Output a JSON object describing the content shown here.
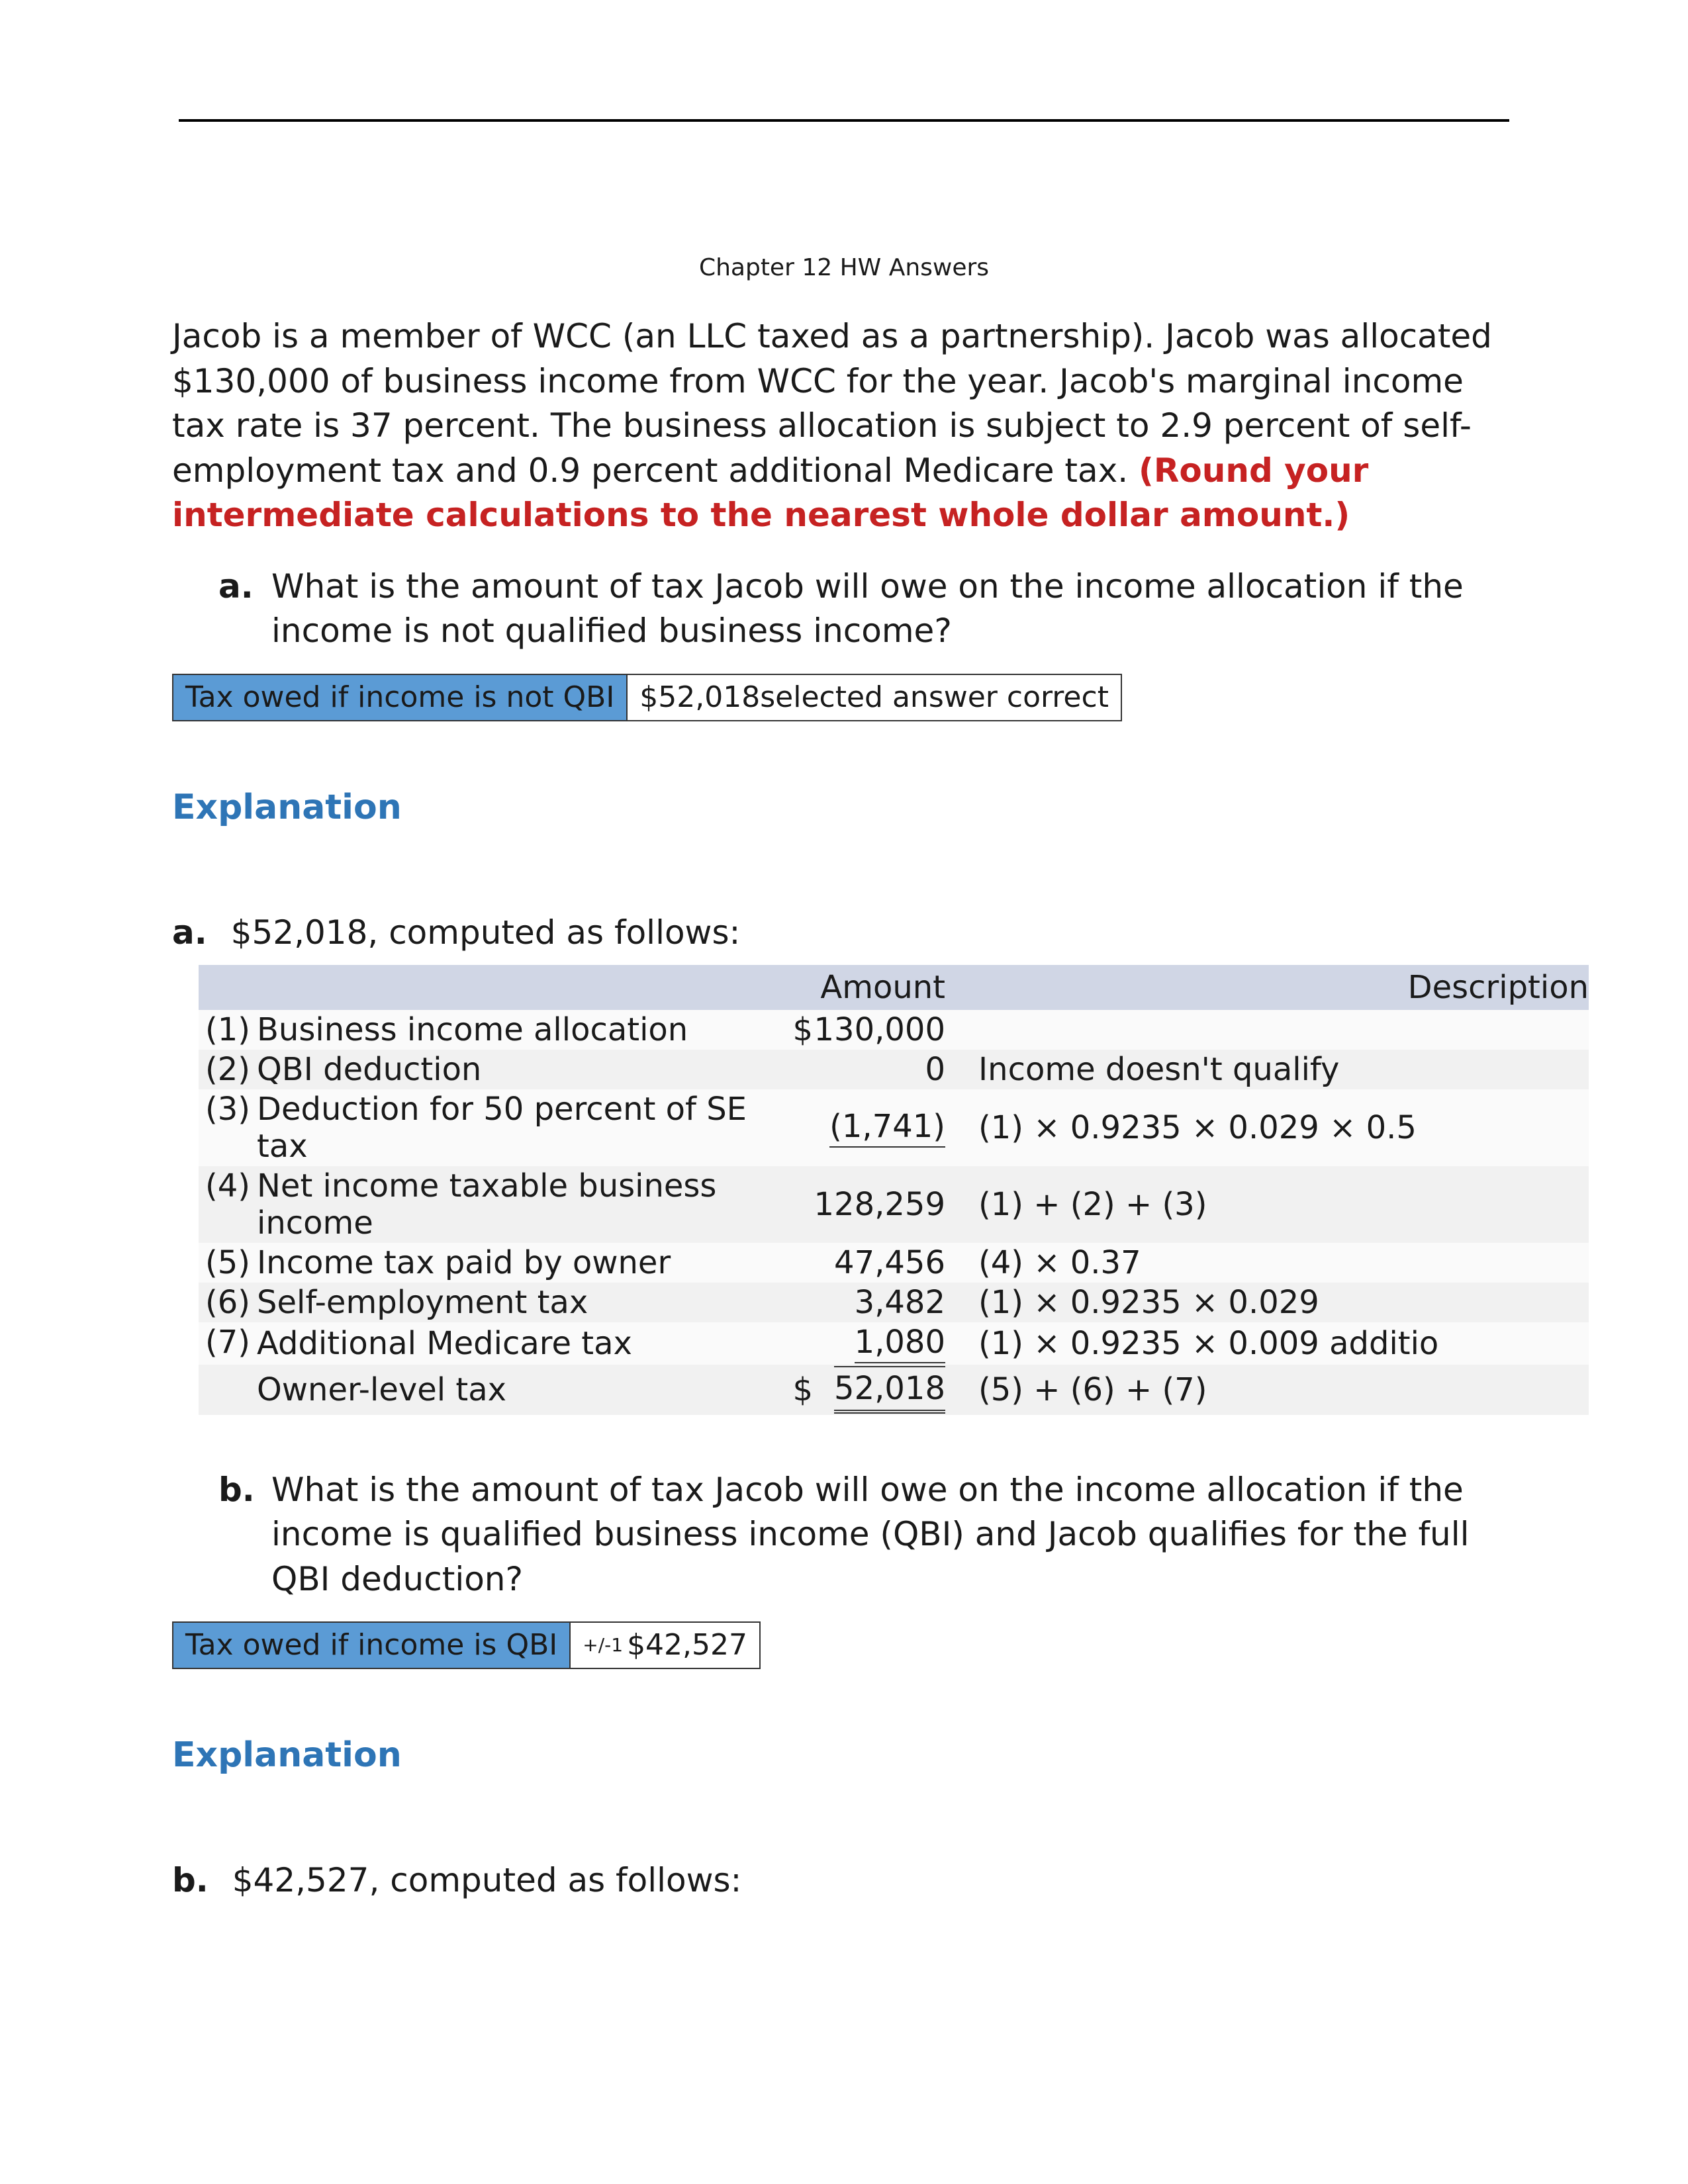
{
  "header": {
    "title": "Chapter 12 HW Answers"
  },
  "problem": {
    "intro": "Jacob is a member of WCC (an LLC taxed as a partnership). Jacob was allocated $130,000 of business income from WCC for the year. Jacob's marginal income tax rate is 37 percent. The business allocation is subject to 2.9 percent of self-employment tax and 0.9 percent additional Medicare tax. ",
    "round_note": "(Round your intermediate calculations to the nearest whole dollar amount.)"
  },
  "part_a": {
    "letter": "a.",
    "question": "What is the amount of tax Jacob will owe on the income allocation if the income is not qualified business income?",
    "box_label": "Tax owed if income is not QBI",
    "box_value": "$52,018",
    "box_note": "selected answer correct"
  },
  "explanation_a": {
    "heading": "Explanation",
    "lead_letter": "a.",
    "lead_text": "$52,018, computed as follows:",
    "col_blank": " ",
    "col_amount": "Amount",
    "col_desc": "Description",
    "rows": [
      {
        "n": "(1)",
        "label": "Business income allocation",
        "cur": "$",
        "amount": "130,000",
        "desc": " "
      },
      {
        "n": "(2)",
        "label": "QBI deduction",
        "cur": "",
        "amount": "0",
        "desc": "Income doesn't qualify"
      },
      {
        "n": "(3)",
        "label": "Deduction for 50 percent of SE tax",
        "cur": "",
        "amount": "(1,741)",
        "desc": "(1) × 0.9235 × 0.029 × 0.5"
      },
      {
        "n": "(4)",
        "label": "Net income taxable business income",
        "cur": "",
        "amount": "128,259",
        "desc": "(1) + (2) + (3)"
      },
      {
        "n": "(5)",
        "label": "Income tax paid by owner",
        "cur": "",
        "amount": "47,456",
        "desc": "(4) × 0.37"
      },
      {
        "n": "(6)",
        "label": "Self-employment tax",
        "cur": "",
        "amount": "3,482",
        "desc": "(1) × 0.9235 × 0.029"
      },
      {
        "n": "(7)",
        "label": "Additional Medicare tax",
        "cur": "",
        "amount": "1,080",
        "desc": "(1) × 0.9235 × 0.009 additio"
      },
      {
        "n": "",
        "label": "Owner-level tax",
        "cur": "$",
        "amount": "52,018",
        "desc": "(5) + (6) + (7)"
      }
    ]
  },
  "part_b": {
    "letter": "b.",
    "question": "What is the amount of tax Jacob will owe on the income allocation if the income is qualified business income (QBI) and Jacob qualifies for the full QBI deduction?",
    "box_label": "Tax owed if income is QBI",
    "tolerance": "+/-1",
    "box_value": "$42,527"
  },
  "explanation_b": {
    "heading": "Explanation",
    "lead_letter": "b.",
    "lead_text": "$42,527, computed as follows:"
  }
}
